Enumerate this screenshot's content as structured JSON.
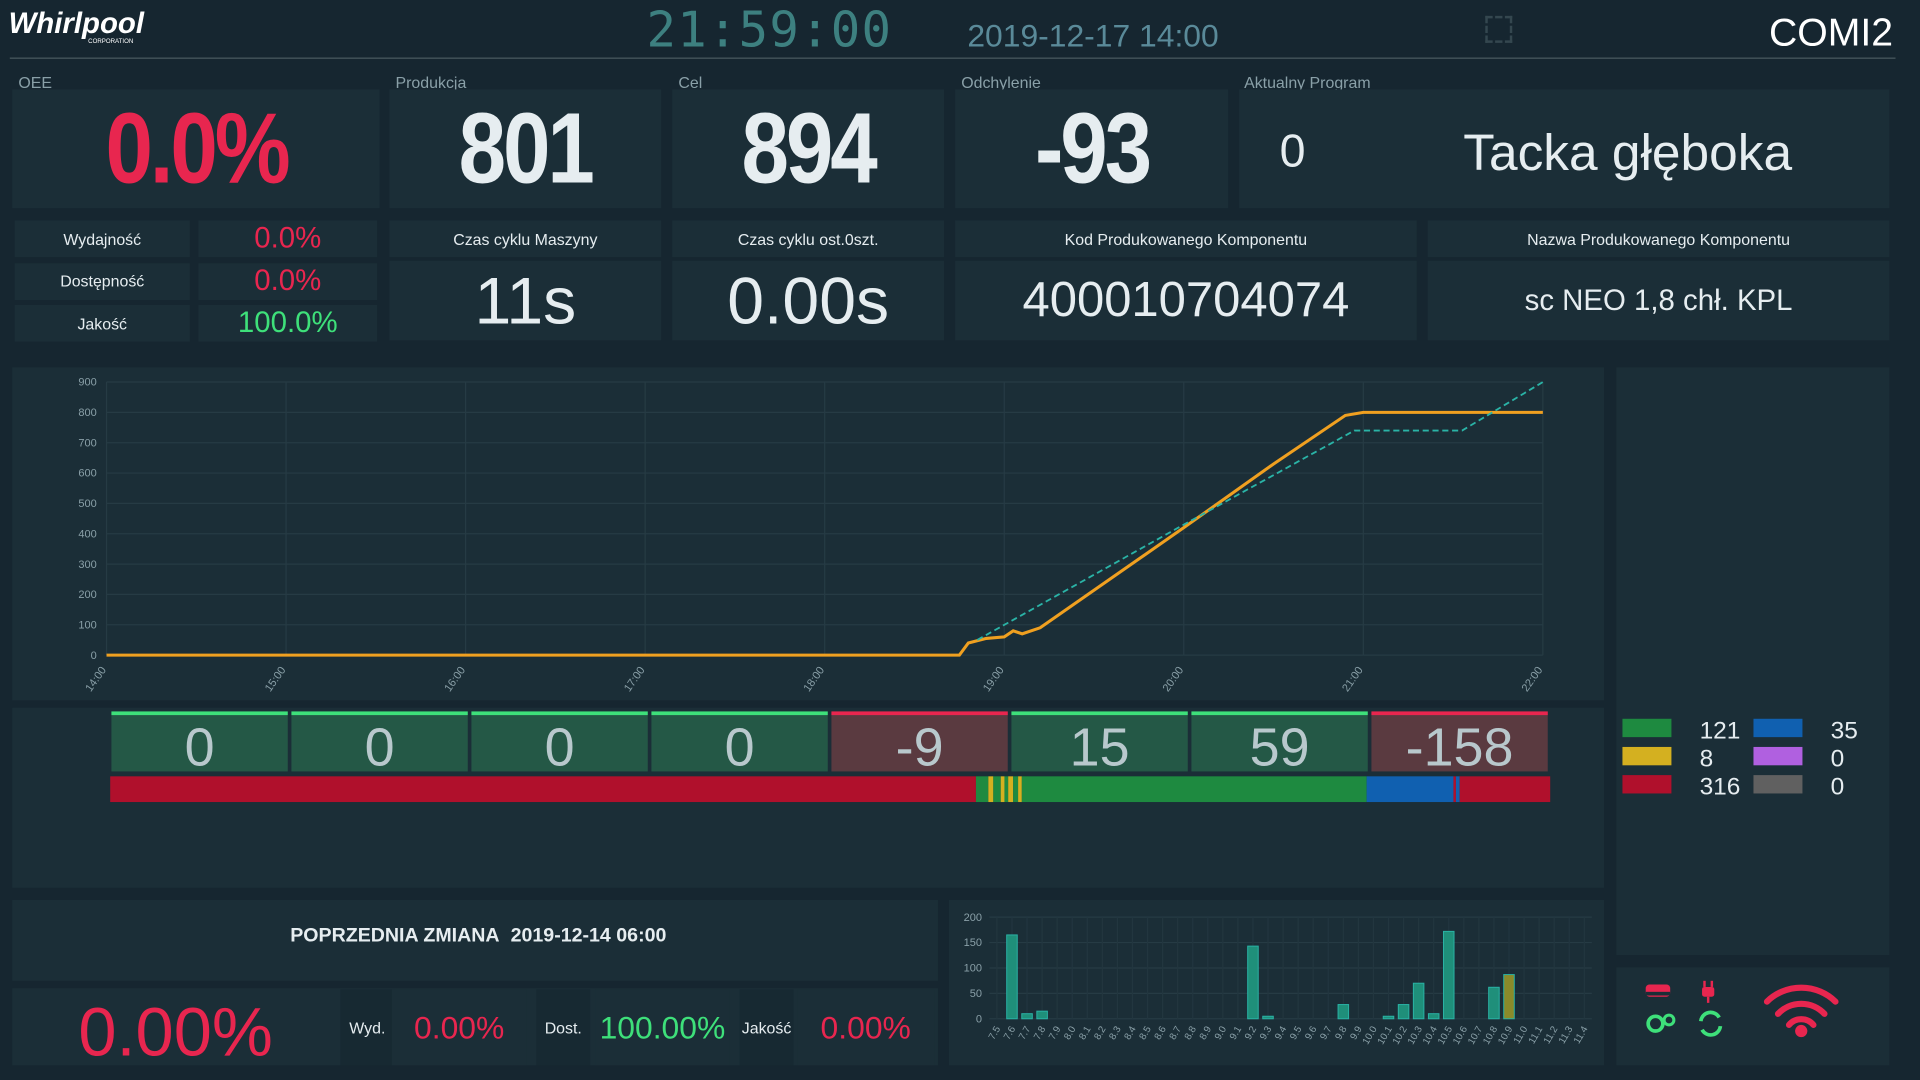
{
  "header": {
    "logo": "Whirlpool",
    "logo_sub": "CORPORATION",
    "clock": "21:59:00",
    "datetime": "2019-12-17 14:00",
    "station": "COMI2"
  },
  "kpis": {
    "oee": {
      "label": "OEE",
      "value": "0.0%",
      "color": "#e8264f"
    },
    "production": {
      "label": "Produkcja",
      "value": "801"
    },
    "target": {
      "label": "Cel",
      "value": "894"
    },
    "deviation": {
      "label": "Odchylenie",
      "value": "-93"
    },
    "program": {
      "label": "Aktualny Program",
      "number": "0",
      "name": "Tacka głęboka"
    }
  },
  "oee_breakdown": [
    {
      "label": "Wydajność",
      "value": "0.0%",
      "color": "#e8264f"
    },
    {
      "label": "Dostępność",
      "value": "0.0%",
      "color": "#e8264f"
    },
    {
      "label": "Jakość",
      "value": "100.0%",
      "color": "#3ee07a"
    }
  ],
  "details": [
    {
      "label": "Czas cyklu Maszyny",
      "value": "11s"
    },
    {
      "label": "Czas cyklu ost.0szt.",
      "value": "0.00s"
    },
    {
      "label": "Kod Produkowanego Komponentu",
      "value": "400010704074"
    },
    {
      "label": "Nazwa Produkowanego Komponentu",
      "value": "sc NEO 1,8 chł. KPL"
    }
  ],
  "chart_data": [
    {
      "type": "line",
      "xlim": [
        14,
        22
      ],
      "ylim": [
        0,
        900
      ],
      "xticks": [
        {
          "value": 14,
          "label": "14:00"
        },
        {
          "value": 15,
          "label": "15:00"
        },
        {
          "value": 16,
          "label": "16:00"
        },
        {
          "value": 17,
          "label": "17:00"
        },
        {
          "value": 18,
          "label": "18:00"
        },
        {
          "value": 19,
          "label": "19:00"
        },
        {
          "value": 20,
          "label": "20:00"
        },
        {
          "value": 21,
          "label": "21:00"
        },
        {
          "value": 22,
          "label": "22:00"
        }
      ],
      "yticks": [
        0,
        100,
        200,
        300,
        400,
        500,
        600,
        700,
        800,
        900
      ],
      "grid": true,
      "series": [
        {
          "color": "#f0a020",
          "dashed": false,
          "x": [
            14,
            18.75,
            18.8,
            18.9,
            19.0,
            19.05,
            19.1,
            19.2,
            20.0,
            20.5,
            20.9,
            21.0,
            22.0
          ],
          "values": [
            0,
            0,
            40,
            55,
            60,
            80,
            70,
            90,
            420,
            630,
            790,
            800,
            800
          ]
        },
        {
          "color": "#2ab3a6",
          "dashed": true,
          "x": [
            18.85,
            20.0,
            20.95,
            21.55,
            22.0
          ],
          "values": [
            50,
            430,
            740,
            740,
            900
          ]
        }
      ]
    },
    {
      "type": "bar",
      "categories": [
        "7.5",
        "7.6",
        "7.7",
        "7.8",
        "7.9",
        "8.0",
        "8.1",
        "8.2",
        "8.3",
        "8.4",
        "8.5",
        "8.6",
        "8.7",
        "8.8",
        "8.9",
        "9.0",
        "9.1",
        "9.2",
        "9.3",
        "9.4",
        "9.5",
        "9.6",
        "9.7",
        "9.8",
        "9.9",
        "10.0",
        "10.1",
        "10.2",
        "10.3",
        "10.4",
        "10.5",
        "10.6",
        "10.7",
        "10.8",
        "10.9",
        "11.0",
        "11.1",
        "11.2",
        "11.3",
        "11.4"
      ],
      "ylim": [
        0,
        200
      ],
      "yticks": [
        0,
        50,
        100,
        150,
        200
      ],
      "grid": true,
      "series": [
        {
          "color": "#1f8f7a",
          "values": [
            0,
            165,
            10,
            15,
            0,
            0,
            0,
            0,
            0,
            0,
            0,
            0,
            0,
            0,
            0,
            0,
            0,
            143,
            5,
            0,
            0,
            0,
            0,
            28,
            0,
            0,
            5,
            28,
            70,
            10,
            172,
            0,
            0,
            62,
            0,
            0,
            0,
            0,
            0,
            0
          ]
        },
        {
          "color": "#8a8a2a",
          "values": [
            null,
            null,
            null,
            null,
            null,
            null,
            null,
            null,
            null,
            null,
            null,
            null,
            null,
            null,
            null,
            null,
            null,
            null,
            null,
            null,
            null,
            null,
            null,
            null,
            null,
            null,
            null,
            null,
            null,
            null,
            null,
            null,
            null,
            null,
            87,
            null,
            null,
            null,
            null,
            null
          ]
        }
      ]
    }
  ],
  "shift_blocks": {
    "values": [
      0,
      0,
      0,
      0,
      -9,
      15,
      59,
      -158
    ],
    "positive_color": "#245846",
    "negative_color": "#5a3a40",
    "positive_top": "#3ee07a",
    "negative_top": "#e8264f"
  },
  "timeline": [
    {
      "color": "#b0102c",
      "value": 698
    },
    {
      "color": "#1e8a40",
      "value": 10
    },
    {
      "color": "#d4b020",
      "value": 4
    },
    {
      "color": "#1e8a40",
      "value": 6
    },
    {
      "color": "#d4b020",
      "value": 3
    },
    {
      "color": "#1e8a40",
      "value": 3
    },
    {
      "color": "#d4b020",
      "value": 4
    },
    {
      "color": "#1e8a40",
      "value": 4
    },
    {
      "color": "#d4b020",
      "value": 3
    },
    {
      "color": "#1e8a40",
      "value": 278
    },
    {
      "color": "#1060b0",
      "value": 70
    },
    {
      "color": "#b0102c",
      "value": 2
    },
    {
      "color": "#1060b0",
      "value": 3
    },
    {
      "color": "#b0102c",
      "value": 73
    }
  ],
  "status_legend": [
    {
      "color": "#1e8a40",
      "value": 121
    },
    {
      "color": "#d4b020",
      "value": 8
    },
    {
      "color": "#b0102c",
      "value": 316
    },
    {
      "color": "#1060b0",
      "value": 35
    },
    {
      "color": "#b060e0",
      "value": 0
    },
    {
      "color": "#606060",
      "value": 0
    }
  ],
  "prev_shift": {
    "title": "POPRZEDNIA ZMIANA",
    "date": "2019-12-14 06:00",
    "oee": "0.00%",
    "oee_color": "#e8264f",
    "metrics": [
      {
        "label": "Wyd.",
        "value": "0.00%",
        "color": "#e8264f"
      },
      {
        "label": "Dost.",
        "value": "100.00%",
        "color": "#3ee07a"
      },
      {
        "label": "Jakość",
        "value": "0.00%",
        "color": "#e8264f"
      }
    ]
  }
}
